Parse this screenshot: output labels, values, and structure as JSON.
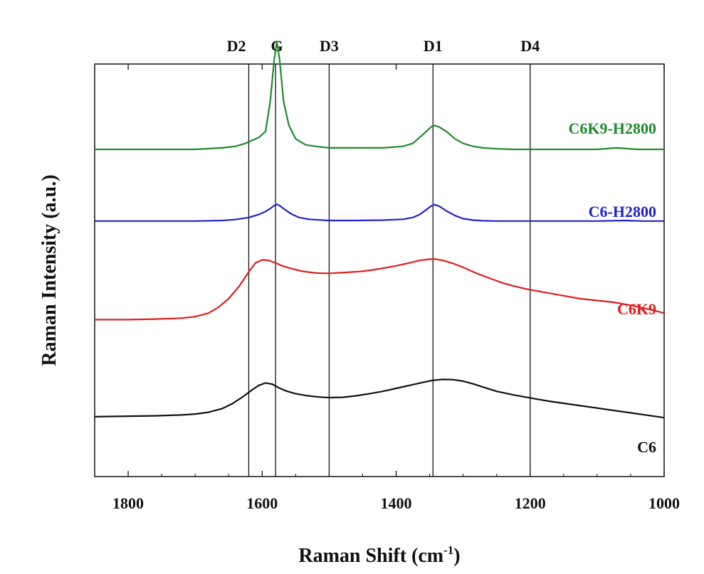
{
  "chart_data": {
    "type": "line",
    "title": "",
    "xlabel": "Raman Shift (cm",
    "xlabel_sup": "-1",
    "xlabel_tail": ")",
    "ylabel": "Raman Intensity (a.u.)",
    "xlim": [
      1850,
      1000
    ],
    "x_reversed": true,
    "yticks_shown": false,
    "grid": false,
    "legend": "none",
    "xticks": [
      {
        "value": 1800,
        "label": "1800"
      },
      {
        "value": 1600,
        "label": "1600"
      },
      {
        "value": 1400,
        "label": "1400"
      },
      {
        "value": 1200,
        "label": "1200"
      },
      {
        "value": 1000,
        "label": "1000"
      }
    ],
    "reference_lines": [
      {
        "label": "D2",
        "x": 1620
      },
      {
        "label": "G",
        "x": 1580
      },
      {
        "label": "D3",
        "x": 1500
      },
      {
        "label": "D1",
        "x": 1345
      },
      {
        "label": "D4",
        "x": 1200
      }
    ],
    "series": [
      {
        "name": "C6K9-H2800",
        "color": "#1f8a2e",
        "x": [
          1850,
          1760,
          1700,
          1660,
          1640,
          1625,
          1615,
          1605,
          1595,
          1588,
          1582,
          1578,
          1574,
          1568,
          1560,
          1550,
          1535,
          1520,
          1500,
          1460,
          1420,
          1390,
          1375,
          1365,
          1355,
          1348,
          1343,
          1336,
          1325,
          1312,
          1300,
          1285,
          1270,
          1250,
          1225,
          1200,
          1150,
          1100,
          1070,
          1040,
          1000
        ],
        "y": [
          0.5,
          0.5,
          0.5,
          0.505,
          0.51,
          0.52,
          0.53,
          0.54,
          0.56,
          0.66,
          0.8,
          0.86,
          0.8,
          0.66,
          0.58,
          0.535,
          0.515,
          0.51,
          0.505,
          0.505,
          0.505,
          0.51,
          0.52,
          0.54,
          0.56,
          0.575,
          0.58,
          0.575,
          0.56,
          0.535,
          0.52,
          0.51,
          0.505,
          0.502,
          0.5,
          0.5,
          0.5,
          0.5,
          0.505,
          0.5,
          0.5
        ]
      },
      {
        "name": "C6-H2800",
        "color": "#2222cc",
        "x": [
          1850,
          1760,
          1700,
          1660,
          1640,
          1620,
          1605,
          1595,
          1588,
          1582,
          1578,
          1574,
          1566,
          1556,
          1545,
          1530,
          1500,
          1460,
          1420,
          1390,
          1375,
          1365,
          1355,
          1348,
          1343,
          1336,
          1325,
          1312,
          1300,
          1285,
          1270,
          1250,
          1200,
          1150,
          1100,
          1060,
          1030,
          1000
        ],
        "y": [
          0.26,
          0.26,
          0.26,
          0.262,
          0.265,
          0.272,
          0.282,
          0.292,
          0.302,
          0.312,
          0.316,
          0.312,
          0.298,
          0.283,
          0.272,
          0.266,
          0.262,
          0.262,
          0.263,
          0.266,
          0.272,
          0.282,
          0.298,
          0.31,
          0.315,
          0.31,
          0.294,
          0.278,
          0.268,
          0.263,
          0.261,
          0.26,
          0.26,
          0.26,
          0.26,
          0.262,
          0.26,
          0.26
        ]
      },
      {
        "name": "C6K9",
        "color": "#e01e1e",
        "x": [
          1850,
          1800,
          1760,
          1720,
          1700,
          1680,
          1665,
          1650,
          1635,
          1620,
          1610,
          1600,
          1590,
          1580,
          1570,
          1555,
          1540,
          1520,
          1500,
          1475,
          1450,
          1425,
          1400,
          1380,
          1365,
          1352,
          1343,
          1330,
          1315,
          1300,
          1280,
          1260,
          1240,
          1220,
          1200,
          1175,
          1150,
          1125,
          1100,
          1075,
          1050,
          1025,
          1000
        ],
        "y": [
          -0.07,
          -0.07,
          -0.068,
          -0.065,
          -0.06,
          -0.048,
          -0.028,
          0.0,
          0.04,
          0.09,
          0.12,
          0.13,
          0.128,
          0.12,
          0.11,
          0.1,
          0.092,
          0.086,
          0.085,
          0.088,
          0.092,
          0.1,
          0.11,
          0.12,
          0.128,
          0.132,
          0.133,
          0.128,
          0.118,
          0.105,
          0.085,
          0.068,
          0.052,
          0.04,
          0.03,
          0.02,
          0.01,
          0.0,
          -0.006,
          -0.012,
          -0.022,
          -0.034,
          -0.048
        ]
      },
      {
        "name": "C6",
        "color": "#111111",
        "x": [
          1850,
          1800,
          1760,
          1720,
          1700,
          1680,
          1660,
          1645,
          1630,
          1615,
          1605,
          1595,
          1585,
          1575,
          1565,
          1550,
          1535,
          1515,
          1500,
          1480,
          1460,
          1440,
          1420,
          1400,
          1380,
          1360,
          1345,
          1330,
          1315,
          1300,
          1285,
          1270,
          1250,
          1225,
          1200,
          1175,
          1150,
          1125,
          1100,
          1075,
          1050,
          1025,
          1000
        ],
        "y": [
          -0.395,
          -0.393,
          -0.392,
          -0.389,
          -0.386,
          -0.38,
          -0.368,
          -0.352,
          -0.33,
          -0.305,
          -0.29,
          -0.282,
          -0.286,
          -0.298,
          -0.308,
          -0.318,
          -0.324,
          -0.329,
          -0.331,
          -0.33,
          -0.325,
          -0.318,
          -0.31,
          -0.3,
          -0.29,
          -0.28,
          -0.273,
          -0.27,
          -0.271,
          -0.276,
          -0.285,
          -0.296,
          -0.31,
          -0.322,
          -0.332,
          -0.342,
          -0.35,
          -0.358,
          -0.366,
          -0.374,
          -0.382,
          -0.39,
          -0.398
        ]
      }
    ]
  }
}
